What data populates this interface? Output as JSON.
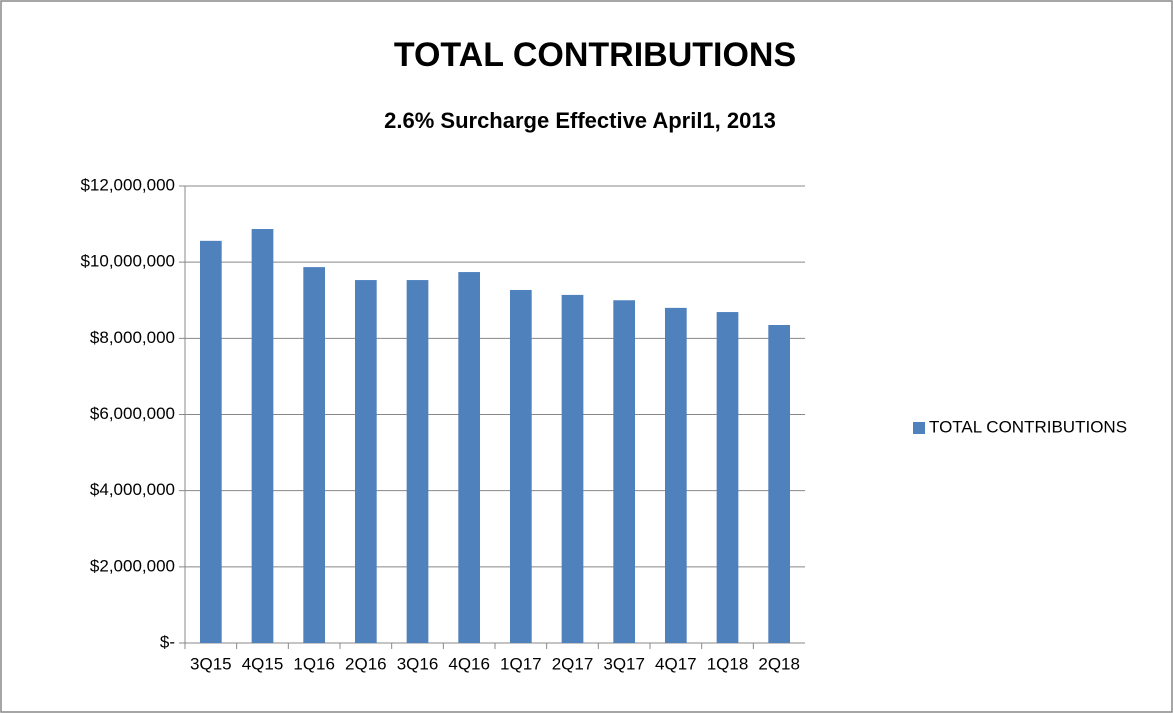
{
  "chart_data": {
    "type": "bar",
    "title": "TOTAL CONTRIBUTIONS",
    "subtitle": "2.6% Surcharge Effective April1, 2013",
    "categories": [
      "3Q15",
      "4Q15",
      "1Q16",
      "2Q16",
      "3Q16",
      "4Q16",
      "1Q17",
      "2Q17",
      "3Q17",
      "4Q17",
      "1Q18",
      "2Q18"
    ],
    "series": [
      {
        "name": "TOTAL CONTRIBUTIONS",
        "color": "#4f81bd",
        "values": [
          10560000,
          10870000,
          9870000,
          9530000,
          9530000,
          9740000,
          9270000,
          9140000,
          9000000,
          8800000,
          8690000,
          8350000
        ]
      }
    ],
    "ylim": [
      0,
      12000000
    ],
    "yticks": [
      {
        "value": 0,
        "label": "$-"
      },
      {
        "value": 2000000,
        "label": "$2,000,000"
      },
      {
        "value": 4000000,
        "label": "$4,000,000"
      },
      {
        "value": 6000000,
        "label": "$6,000,000"
      },
      {
        "value": 8000000,
        "label": "$8,000,000"
      },
      {
        "value": 10000000,
        "label": "$10,000,000"
      },
      {
        "value": 12000000,
        "label": "$12,000,000"
      }
    ],
    "grid": true,
    "legend": "right"
  }
}
